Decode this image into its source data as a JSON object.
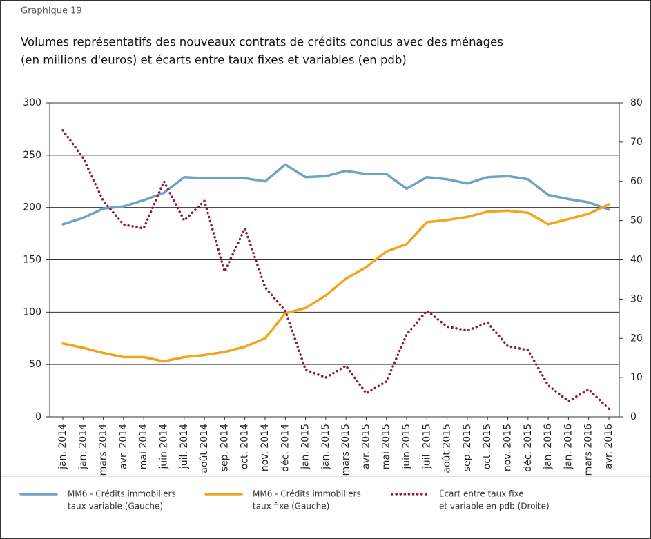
{
  "chart_data": {
    "type": "line",
    "header": "Graphique 19",
    "title": [
      "Volumes représentatifs des nouveaux contrats de crédits conclus avec des ménages",
      "(en millions d'euros) et écarts entre taux fixes et variables (en pdb)"
    ],
    "categories": [
      "jan. 2014",
      "jan. 2014",
      "mars 2014",
      "avr. 2014",
      "mai 2014",
      "juin 2014",
      "juil. 2014",
      "août 2014",
      "sep. 2014",
      "oct. 2014",
      "nov. 2014",
      "déc. 2014",
      "jan. 2015",
      "jan. 2015",
      "mars 2015",
      "avr. 2015",
      "mai 2015",
      "juin 2015",
      "juil. 2015",
      "août 2015",
      "sep. 2015",
      "oct. 2015",
      "nov. 2015",
      "déc. 2015",
      "jan. 2016",
      "jan. 2016",
      "mars 2016",
      "avr. 2016"
    ],
    "series": [
      {
        "name": [
          "MM6 - Crédits immobiliers",
          "taux variable (Gauche)"
        ],
        "color": "#6fa3c4",
        "axis": "y",
        "values": [
          184,
          190,
          199,
          201,
          207,
          214,
          229,
          228,
          228,
          228,
          225,
          241,
          229,
          230,
          235,
          232,
          232,
          218,
          229,
          227,
          223,
          229,
          230,
          227,
          212,
          208,
          205,
          198
        ]
      },
      {
        "name": [
          "MM6 - Crédits immobiliers",
          "taux fixe (Gauche)"
        ],
        "color": "#f0a51c",
        "axis": "y",
        "values": [
          70,
          66,
          61,
          57,
          57,
          53,
          57,
          59,
          62,
          67,
          75,
          99,
          104,
          116,
          132,
          143,
          158,
          165,
          186,
          188,
          191,
          196,
          197,
          195,
          184,
          189,
          194,
          203
        ]
      },
      {
        "name": [
          "Écart entre taux fixe",
          "et variable en pdb  (Droite)"
        ],
        "color": "#8b1a3e",
        "axis": "y2",
        "dotted": true,
        "values": [
          73,
          66,
          55,
          49,
          48,
          60,
          50,
          55,
          37,
          48,
          33,
          27,
          12,
          10,
          13,
          6,
          9,
          21,
          27,
          23,
          22,
          24,
          18,
          17,
          8,
          4,
          7,
          2
        ]
      }
    ],
    "ylim": [
      0,
      300
    ],
    "yticks": [
      0,
      50,
      100,
      150,
      200,
      250,
      300
    ],
    "y2lim": [
      0,
      80
    ],
    "y2ticks": [
      0,
      10,
      20,
      30,
      40,
      50,
      60,
      70,
      80
    ],
    "grid": true
  }
}
